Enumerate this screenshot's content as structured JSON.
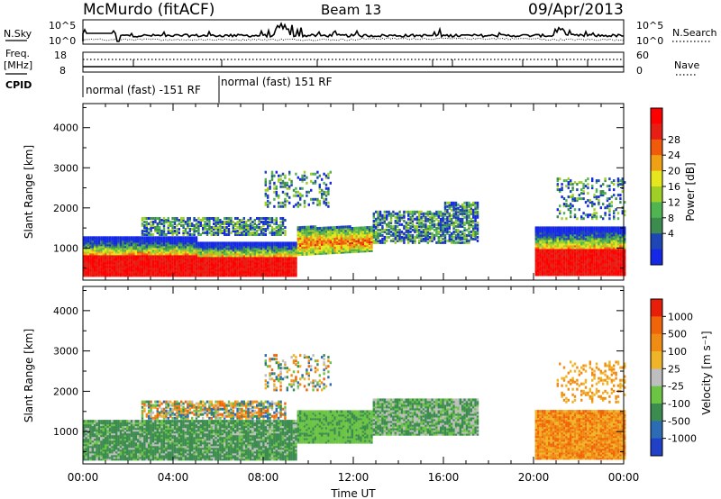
{
  "header": {
    "station": "McMurdo (fitACF)",
    "beam": "Beam 13",
    "date": "09/Apr/2013"
  },
  "aux_panels": {
    "nsky_label": "N.Sky",
    "nsky_ticks": [
      "10^5",
      "10^0"
    ],
    "nsearch_label": "N.Search",
    "freq_label_line1": "Freq.",
    "freq_label_line2": "[MHz]",
    "freq_ticks": [
      "18",
      "8"
    ],
    "nave_ticks": [
      "60",
      "0"
    ],
    "nave_label": "Nave",
    "cpid_label": "CPID",
    "cpid_segments": [
      {
        "label": "normal (fast) -151 RF",
        "start_hour": 0,
        "end_hour": 6.0
      },
      {
        "label": "normal (fast) 151 RF",
        "start_hour": 6.0,
        "end_hour": 24
      }
    ]
  },
  "chart_data": [
    {
      "type": "heatmap",
      "name": "power-panel",
      "ylabel": "Slant Range [km]",
      "xlabel": "",
      "ylim": [
        200,
        4600
      ],
      "xlim_hours": [
        0,
        24
      ],
      "y_ticks": [
        "1000",
        "2000",
        "3000",
        "4000"
      ],
      "colorbar": {
        "label": "Power [dB]",
        "tick_labels": [
          "4",
          "8",
          "12",
          "16",
          "20",
          "24",
          "28"
        ],
        "colors": [
          "#1428e6",
          "#1e46b4",
          "#3c8c50",
          "#50b450",
          "#a0d028",
          "#e6e61e",
          "#f0a014",
          "#f05a0a",
          "#e61e14",
          "#ff0000"
        ]
      }
    },
    {
      "type": "heatmap",
      "name": "velocity-panel",
      "ylabel": "Slant Range [km]",
      "xlabel": "Time UT",
      "ylim": [
        200,
        4600
      ],
      "xlim_hours": [
        0,
        24
      ],
      "y_ticks": [
        "1000",
        "2000",
        "3000",
        "4000"
      ],
      "x_ticks": [
        "00:00",
        "04:00",
        "08:00",
        "12:00",
        "16:00",
        "20:00",
        "00:00"
      ],
      "colorbar": {
        "label": "Velocity [m s⁻¹]",
        "tick_labels": [
          "1000",
          "500",
          "100",
          "25",
          "-25",
          "-100",
          "-500",
          "-1000"
        ],
        "colors": [
          "#2040c8",
          "#2c6cb4",
          "#3c8c50",
          "#6cc444",
          "#bebebe",
          "#f0b428",
          "#f08c14",
          "#f0640a",
          "#e61e0a"
        ]
      }
    }
  ]
}
